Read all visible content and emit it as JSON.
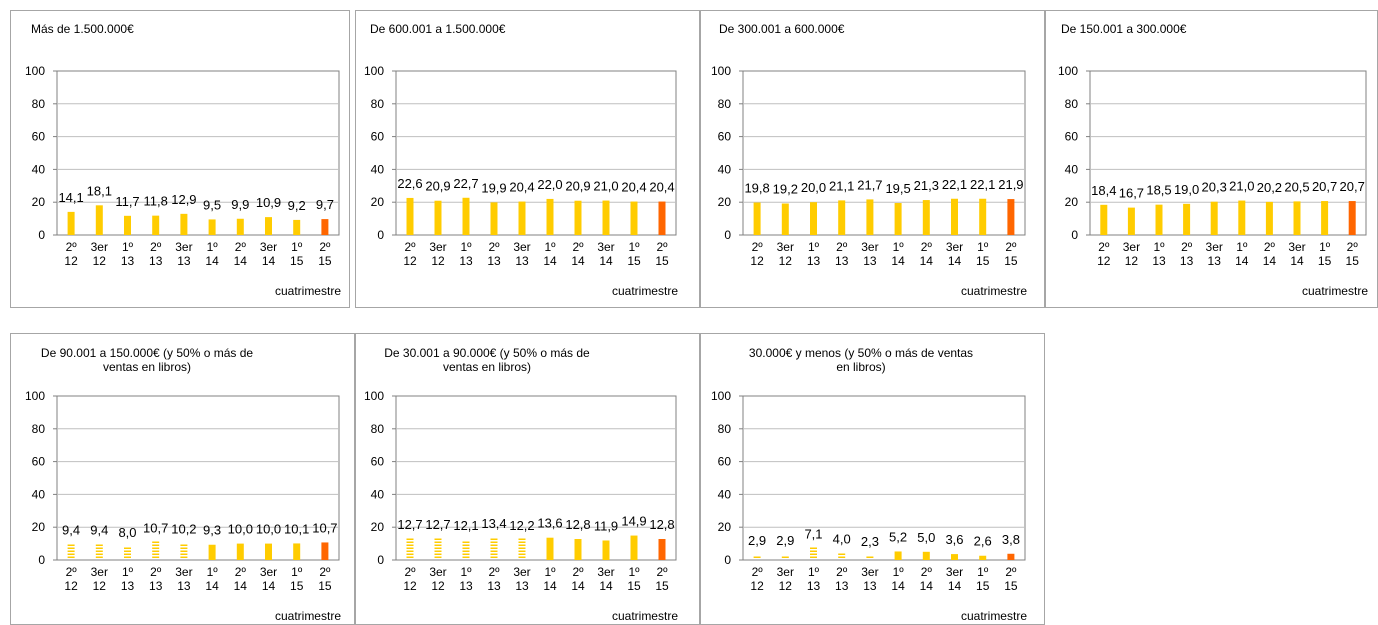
{
  "colors": {
    "bar": "#ffcc00",
    "highlight": "#ff6600",
    "grid": "#bfbfbf",
    "axis": "#808080"
  },
  "chart_data": [
    {
      "type": "bar",
      "title": "Más de 1.500.000€",
      "xlabel": "cuatrimestre",
      "ylim": [
        0,
        100
      ],
      "yticks": [
        "0",
        "20",
        "40",
        "60",
        "80",
        "100"
      ],
      "categories": [
        [
          "2º",
          "12"
        ],
        [
          "3er",
          "12"
        ],
        [
          "1º",
          "13"
        ],
        [
          "2º",
          "13"
        ],
        [
          "3er",
          "13"
        ],
        [
          "1º",
          "14"
        ],
        [
          "2º",
          "14"
        ],
        [
          "3er",
          "14"
        ],
        [
          "1º",
          "15"
        ],
        [
          "2º",
          "15"
        ]
      ],
      "values": [
        14.1,
        18.1,
        11.7,
        11.8,
        12.9,
        9.5,
        9.9,
        10.9,
        9.2,
        9.7
      ],
      "labels": [
        "14,1",
        "18,1",
        "11,7",
        "11,8",
        "12,9",
        "9,5",
        "9,9",
        "10,9",
        "9,2",
        "9,7"
      ],
      "grid": true,
      "highlight_last": true
    },
    {
      "type": "bar",
      "title": "De 600.001 a 1.500.000€",
      "xlabel": "cuatrimestre",
      "ylim": [
        0,
        100
      ],
      "yticks": [
        "0",
        "20",
        "40",
        "60",
        "80",
        "100"
      ],
      "categories": [
        [
          "2º",
          "12"
        ],
        [
          "3er",
          "12"
        ],
        [
          "1º",
          "13"
        ],
        [
          "2º",
          "13"
        ],
        [
          "3er",
          "13"
        ],
        [
          "1º",
          "14"
        ],
        [
          "2º",
          "14"
        ],
        [
          "3er",
          "14"
        ],
        [
          "1º",
          "15"
        ],
        [
          "2º",
          "15"
        ]
      ],
      "values": [
        22.6,
        20.9,
        22.7,
        19.9,
        20.4,
        22.0,
        20.9,
        21.0,
        20.4,
        20.4
      ],
      "labels": [
        "22,6",
        "20,9",
        "22,7",
        "19,9",
        "20,4",
        "22,0",
        "20,9",
        "21,0",
        "20,4",
        "20,4"
      ],
      "grid": true,
      "highlight_last": true
    },
    {
      "type": "bar",
      "title": "De 300.001 a 600.000€",
      "xlabel": "cuatrimestre",
      "ylim": [
        0,
        100
      ],
      "yticks": [
        "0",
        "20",
        "40",
        "60",
        "80",
        "100"
      ],
      "categories": [
        [
          "2º",
          "12"
        ],
        [
          "3er",
          "12"
        ],
        [
          "1º",
          "13"
        ],
        [
          "2º",
          "13"
        ],
        [
          "3er",
          "13"
        ],
        [
          "1º",
          "14"
        ],
        [
          "2º",
          "14"
        ],
        [
          "3er",
          "14"
        ],
        [
          "1º",
          "15"
        ],
        [
          "2º",
          "15"
        ]
      ],
      "values": [
        19.8,
        19.2,
        20.0,
        21.1,
        21.7,
        19.5,
        21.3,
        22.1,
        22.1,
        21.9
      ],
      "labels": [
        "19,8",
        "19,2",
        "20,0",
        "21,1",
        "21,7",
        "19,5",
        "21,3",
        "22,1",
        "22,1",
        "21,9"
      ],
      "grid": true,
      "highlight_last": true
    },
    {
      "type": "bar",
      "title": "De 150.001 a 300.000€",
      "xlabel": "cuatrimestre",
      "ylim": [
        0,
        100
      ],
      "yticks": [
        "0",
        "20",
        "40",
        "60",
        "80",
        "100"
      ],
      "categories": [
        [
          "2º",
          "12"
        ],
        [
          "3er",
          "12"
        ],
        [
          "1º",
          "13"
        ],
        [
          "2º",
          "13"
        ],
        [
          "3er",
          "13"
        ],
        [
          "1º",
          "14"
        ],
        [
          "2º",
          "14"
        ],
        [
          "3er",
          "14"
        ],
        [
          "1º",
          "15"
        ],
        [
          "2º",
          "15"
        ]
      ],
      "values": [
        18.4,
        16.7,
        18.5,
        19.0,
        20.3,
        21.0,
        20.2,
        20.5,
        20.7,
        20.7
      ],
      "labels": [
        "18,4",
        "16,7",
        "18,5",
        "19,0",
        "20,3",
        "21,0",
        "20,2",
        "20,5",
        "20,7",
        "20,7"
      ],
      "grid": true,
      "highlight_last": true
    },
    {
      "type": "bar",
      "title": "De 90.001 a 150.000€ (y 50% o más de ventas en libros)",
      "title_lines": [
        "De 90.001 a 150.000€ (y 50% o más de",
        "ventas en libros)"
      ],
      "xlabel": "cuatrimestre",
      "ylim": [
        0,
        100
      ],
      "yticks": [
        "0",
        "20",
        "40",
        "60",
        "80",
        "100"
      ],
      "categories": [
        [
          "2º",
          "12"
        ],
        [
          "3er",
          "12"
        ],
        [
          "1º",
          "13"
        ],
        [
          "2º",
          "13"
        ],
        [
          "3er",
          "13"
        ],
        [
          "1º",
          "14"
        ],
        [
          "2º",
          "14"
        ],
        [
          "3er",
          "14"
        ],
        [
          "1º",
          "15"
        ],
        [
          "2º",
          "15"
        ]
      ],
      "values": [
        9.4,
        9.4,
        8.0,
        10.7,
        10.2,
        9.3,
        10.0,
        10.0,
        10.1,
        10.7
      ],
      "labels": [
        "9,4",
        "9,4",
        "8,0",
        "10,7",
        "10,2",
        "9,3",
        "10,0",
        "10,0",
        "10,1",
        "10,7"
      ],
      "striped": [
        true,
        true,
        true,
        true,
        true,
        false,
        false,
        false,
        false,
        false
      ],
      "grid": true,
      "highlight_last": true
    },
    {
      "type": "bar",
      "title": "De 30.001 a 90.000€ (y 50% o más de ventas en libros)",
      "title_lines": [
        "De 30.001 a 90.000€ (y 50% o más de",
        "ventas en libros)"
      ],
      "xlabel": "cuatrimestre",
      "ylim": [
        0,
        100
      ],
      "yticks": [
        "0",
        "20",
        "40",
        "60",
        "80",
        "100"
      ],
      "categories": [
        [
          "2º",
          "12"
        ],
        [
          "3er",
          "12"
        ],
        [
          "1º",
          "13"
        ],
        [
          "2º",
          "13"
        ],
        [
          "3er",
          "13"
        ],
        [
          "1º",
          "14"
        ],
        [
          "2º",
          "14"
        ],
        [
          "3er",
          "14"
        ],
        [
          "1º",
          "15"
        ],
        [
          "2º",
          "15"
        ]
      ],
      "values": [
        12.7,
        12.7,
        12.1,
        13.4,
        12.2,
        13.6,
        12.8,
        11.9,
        14.9,
        12.8
      ],
      "labels": [
        "12,7",
        "12,7",
        "12,1",
        "13,4",
        "12,2",
        "13,6",
        "12,8",
        "11,9",
        "14,9",
        "12,8"
      ],
      "striped": [
        true,
        true,
        true,
        true,
        true,
        false,
        false,
        false,
        false,
        false
      ],
      "grid": true,
      "highlight_last": true
    },
    {
      "type": "bar",
      "title": "30.000€ y menos (y 50% o más de ventas en libros)",
      "title_lines": [
        "30.000€ y menos (y 50% o más de ventas",
        "en libros)"
      ],
      "xlabel": "cuatrimestre",
      "ylim": [
        0,
        100
      ],
      "yticks": [
        "0",
        "20",
        "40",
        "60",
        "80",
        "100"
      ],
      "categories": [
        [
          "2º",
          "12"
        ],
        [
          "3er",
          "12"
        ],
        [
          "1º",
          "13"
        ],
        [
          "2º",
          "13"
        ],
        [
          "3er",
          "13"
        ],
        [
          "1º",
          "14"
        ],
        [
          "2º",
          "14"
        ],
        [
          "3er",
          "14"
        ],
        [
          "1º",
          "15"
        ],
        [
          "2º",
          "15"
        ]
      ],
      "values": [
        2.9,
        2.9,
        7.1,
        4.0,
        2.3,
        5.2,
        5.0,
        3.6,
        2.6,
        3.8
      ],
      "labels": [
        "2,9",
        "2,9",
        "7,1",
        "4,0",
        "2,3",
        "5,2",
        "5,0",
        "3,6",
        "2,6",
        "3,8"
      ],
      "striped": [
        true,
        true,
        true,
        true,
        true,
        false,
        false,
        false,
        false,
        false
      ],
      "grid": true,
      "highlight_last": true
    }
  ]
}
